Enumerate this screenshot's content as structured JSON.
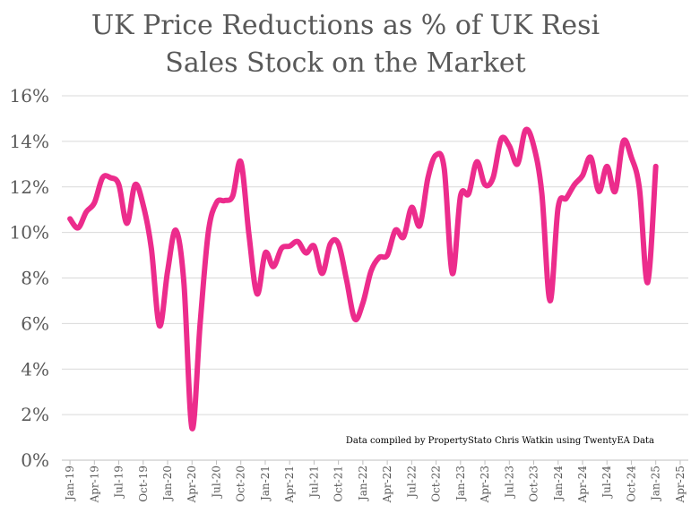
{
  "chart_data": {
    "type": "line",
    "smooth": true,
    "title": [
      "UK Price Reductions as % of UK Resi",
      "Sales Stock on the Market"
    ],
    "ylim": [
      0,
      16
    ],
    "y_ticks": [
      0,
      2,
      4,
      6,
      8,
      10,
      12,
      14,
      16
    ],
    "y_tick_labels": [
      "0%",
      "2%",
      "4%",
      "6%",
      "8%",
      "10%",
      "12%",
      "14%",
      "16%"
    ],
    "xlim": [
      "Dec-18",
      "May-25"
    ],
    "x_tick_labels": [
      "Jan-19",
      "Apr-19",
      "Jul-19",
      "Oct-19",
      "Jan-20",
      "Apr-20",
      "Jul-20",
      "Oct-20",
      "Jan-21",
      "Apr-21",
      "Jul-21",
      "Oct-21",
      "Jan-22",
      "Apr-22",
      "Jul-22",
      "Oct-22",
      "Jan-23",
      "Apr-23",
      "Jul-23",
      "Oct-23",
      "Jan-24",
      "Apr-24",
      "Jul-24",
      "Oct-24",
      "Jan-25",
      "Apr-25"
    ],
    "grid": "horizontal",
    "legend": "none",
    "annotation": "Data compiled by PropertyStato Chris Watkin using TwentyEA Data",
    "colors": {
      "text": "#595959",
      "grid": "#D9D9D9",
      "axis": "#BFBFBF"
    },
    "x": [
      "Jan-19",
      "Feb-19",
      "Mar-19",
      "Apr-19",
      "May-19",
      "Jun-19",
      "Jul-19",
      "Aug-19",
      "Sep-19",
      "Oct-19",
      "Nov-19",
      "Dec-19",
      "Jan-20",
      "Feb-20",
      "Mar-20",
      "Apr-20",
      "May-20",
      "Jun-20",
      "Jul-20",
      "Aug-20",
      "Sep-20",
      "Oct-20",
      "Nov-20",
      "Dec-20",
      "Jan-21",
      "Feb-21",
      "Mar-21",
      "Apr-21",
      "May-21",
      "Jun-21",
      "Jul-21",
      "Aug-21",
      "Sep-21",
      "Oct-21",
      "Nov-21",
      "Dec-21",
      "Jan-22",
      "Feb-22",
      "Mar-22",
      "Apr-22",
      "May-22",
      "Jun-22",
      "Jul-22",
      "Aug-22",
      "Sep-22",
      "Oct-22",
      "Nov-22",
      "Dec-22",
      "Jan-23",
      "Feb-23",
      "Mar-23",
      "Apr-23",
      "May-23",
      "Jun-23",
      "Jul-23",
      "Aug-23",
      "Sep-23",
      "Oct-23",
      "Nov-23",
      "Dec-23",
      "Jan-24",
      "Feb-24",
      "Mar-24",
      "Apr-24",
      "May-24",
      "Jun-24",
      "Jul-24",
      "Aug-24",
      "Sep-24",
      "Oct-24",
      "Nov-24",
      "Dec-24",
      "Jan-25"
    ],
    "series": [
      {
        "color": "#EC2C8C",
        "values": [
          10.6,
          10.2,
          10.9,
          11.3,
          12.4,
          12.4,
          12.1,
          10.4,
          12.1,
          11.2,
          9.3,
          5.9,
          8.3,
          10.1,
          7.8,
          1.4,
          6.0,
          10.0,
          11.3,
          11.4,
          11.6,
          13.1,
          9.9,
          7.3,
          9.1,
          8.5,
          9.3,
          9.4,
          9.6,
          9.1,
          9.4,
          8.2,
          9.5,
          9.5,
          7.9,
          6.2,
          6.9,
          8.3,
          8.9,
          9.0,
          10.1,
          9.8,
          11.1,
          10.3,
          12.4,
          13.4,
          12.8,
          8.2,
          11.6,
          11.7,
          13.1,
          12.1,
          12.4,
          14.1,
          13.8,
          13.0,
          14.5,
          13.8,
          11.7,
          7.0,
          11.1,
          11.5,
          12.1,
          12.5,
          13.3,
          11.8,
          12.9,
          11.8,
          14.0,
          13.3,
          11.9,
          7.8,
          12.9
        ]
      }
    ]
  }
}
